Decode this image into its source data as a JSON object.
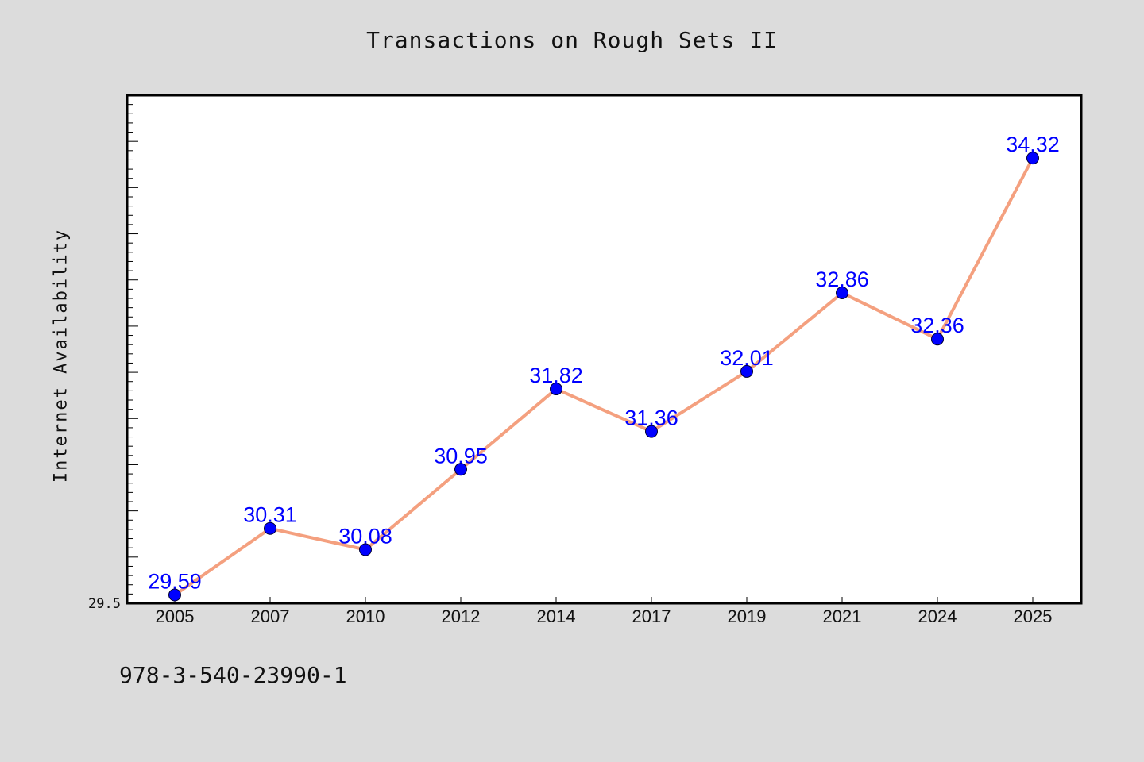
{
  "chart_data": {
    "type": "line",
    "title": "Transactions on Rough Sets II",
    "xlabel": "",
    "ylabel": "Internet Availability",
    "categories": [
      "2005",
      "2007",
      "2010",
      "2012",
      "2014",
      "2017",
      "2019",
      "2021",
      "2024",
      "2025"
    ],
    "series": [
      {
        "values": [
          29.59,
          30.31,
          30.08,
          30.95,
          31.82,
          31.36,
          32.01,
          32.86,
          32.36,
          34.32
        ],
        "labels": [
          "29.59",
          "30.31",
          "30.08",
          "30.95",
          "31.82",
          "31.36",
          "32.01",
          "32.86",
          "32.36",
          "34.32"
        ],
        "line_color": "#f4a07f",
        "marker_color": "#0000ff",
        "label_color": "#0000ff"
      }
    ],
    "ylim": [
      29.5,
      35.0
    ],
    "y_tick_label": "29.5",
    "grid": false,
    "legend": "none"
  },
  "footer": {
    "isbn": "978-3-540-23990-1"
  },
  "colors": {
    "background": "#dcdcdc",
    "plot_background": "#ffffff",
    "axis": "#000000"
  }
}
